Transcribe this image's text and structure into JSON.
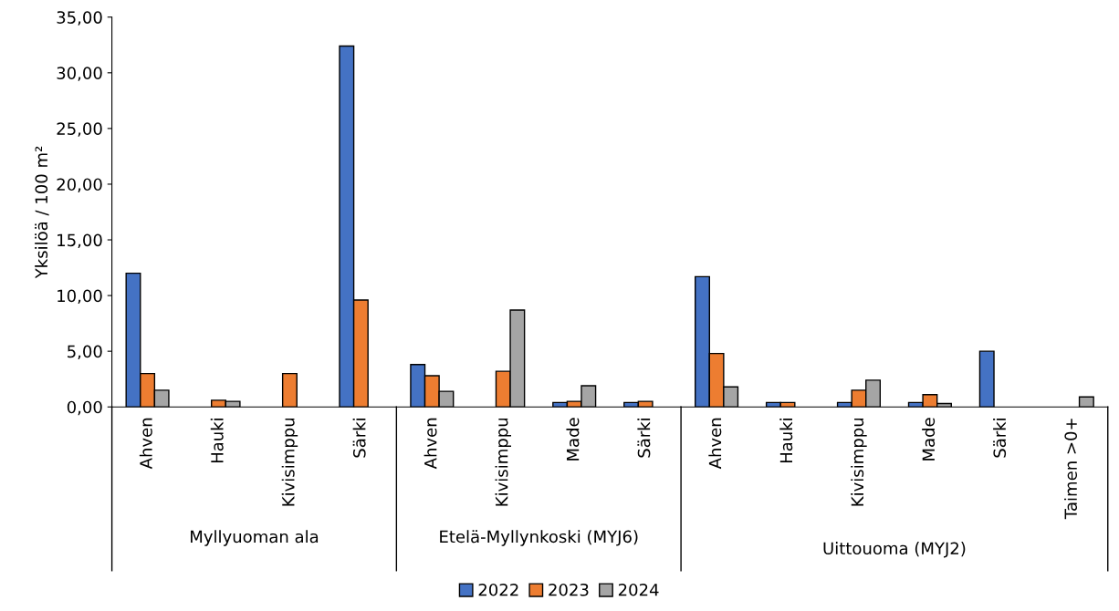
{
  "chart_data": [
    {
      "type": "bar",
      "xlabel": "Myllyuoman ala",
      "ylabel": "Yksilöä / 100 m²",
      "categories": [
        "Ahven",
        "Hauki",
        "Kivisimppu",
        "Särki"
      ],
      "series": [
        {
          "name": "2022",
          "color": "#4472c4",
          "values": [
            12.0,
            null,
            null,
            32.4
          ]
        },
        {
          "name": "2023",
          "color": "#ed7d31",
          "values": [
            3.0,
            0.6,
            3.0,
            9.6
          ]
        },
        {
          "name": "2024",
          "color": "#a5a5a5",
          "values": [
            1.5,
            0.5,
            null,
            null
          ]
        }
      ],
      "ylim": [
        0,
        35
      ],
      "yticks": [
        {
          "value": 0,
          "label": "0,00"
        },
        {
          "value": 5,
          "label": "5,00"
        },
        {
          "value": 10,
          "label": "10,00"
        },
        {
          "value": 15,
          "label": "15,00"
        },
        {
          "value": 20,
          "label": "20,00"
        },
        {
          "value": 25,
          "label": "25,00"
        },
        {
          "value": 30,
          "label": "30,00"
        },
        {
          "value": 35,
          "label": "35,00"
        }
      ],
      "legend": "bottom",
      "grid": false
    },
    {
      "type": "bar",
      "xlabel": "Etelä-Myllynkoski (MYJ6)",
      "categories": [
        "Ahven",
        "Kivisimppu",
        "Made",
        "Särki"
      ],
      "series": [
        {
          "name": "2022",
          "color": "#4472c4",
          "values": [
            3.8,
            null,
            0.4,
            0.4
          ]
        },
        {
          "name": "2023",
          "color": "#ed7d31",
          "values": [
            2.8,
            3.2,
            0.5,
            0.5
          ]
        },
        {
          "name": "2024",
          "color": "#a5a5a5",
          "values": [
            1.4,
            8.7,
            1.9,
            null
          ]
        }
      ],
      "ylim": [
        0,
        35
      ],
      "tick_labels": "x",
      "grid": false
    },
    {
      "type": "bar",
      "xlabel": "Uittouoma (MYJ2)",
      "categories": [
        "Ahven",
        "Hauki",
        "Kivisimppu",
        "Made",
        "Särki",
        "Taimen >0+"
      ],
      "series": [
        {
          "name": "2022",
          "color": "#4472c4",
          "values": [
            11.7,
            0.4,
            0.4,
            0.4,
            5.0,
            null
          ]
        },
        {
          "name": "2023",
          "color": "#ed7d31",
          "values": [
            4.8,
            0.4,
            1.5,
            1.1,
            null,
            null
          ]
        },
        {
          "name": "2024",
          "color": "#a5a5a5",
          "values": [
            1.8,
            null,
            2.4,
            0.3,
            null,
            0.9
          ]
        }
      ],
      "ylim": [
        0,
        35
      ],
      "tick_labels": "x",
      "grid": false
    }
  ]
}
